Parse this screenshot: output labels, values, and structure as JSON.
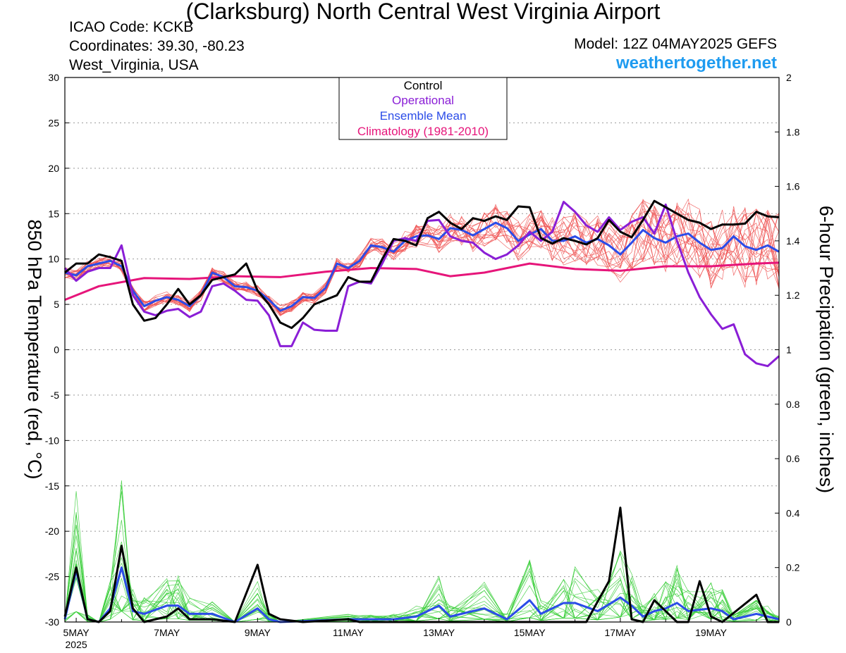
{
  "header": {
    "title": "(Clarksburg) North Central West Virginia Airport",
    "icao": "ICAO Code: KCKB",
    "coordinates": "Coordinates: 39.30, -80.23",
    "region": "West_Virginia, USA",
    "model": "Model: 12Z 04MAY2025 GEFS",
    "website": "weathertogether.net"
  },
  "colors": {
    "member_temp": "#ee4d4d",
    "member_precip": "#33cc33",
    "control": "#000000",
    "operational": "#8a1ed6",
    "ensemble_mean": "#2b4ce8",
    "climatology": "#e6157a",
    "website": "#1e9bf0"
  },
  "chart_data": {
    "type": "line",
    "ylabel_left": "850 hPa Temperature (red, °C)",
    "ylabel_right": "6-hour Precipation (green, inches)",
    "xticks": [
      "5MAY",
      "7MAY",
      "9MAY",
      "11MAY",
      "13MAY",
      "15MAY",
      "17MAY",
      "19MAY"
    ],
    "x_year_label": "2025",
    "ylim_left": [
      -30,
      30
    ],
    "yticks_left": [
      30,
      25,
      20,
      15,
      10,
      5,
      0,
      -5,
      -10,
      -15,
      -20,
      -25,
      -30
    ],
    "ylim_right": [
      0,
      2
    ],
    "yticks_right": [
      "2",
      "1.8",
      "1.6",
      "1.4",
      "1.2",
      "1",
      "0.8",
      "0.6",
      "0.4",
      "0.2",
      "0"
    ],
    "grid": true,
    "legend_position": "top-center",
    "legend": [
      "Control",
      "Operational",
      "Ensemble Mean",
      "Climatology (1981-2010)"
    ],
    "x_days_range": [
      4.75,
      20.5
    ],
    "temperature": {
      "control": [
        [
          4.75,
          8.5
        ],
        [
          5,
          9.5
        ],
        [
          5.25,
          9.5
        ],
        [
          5.5,
          10.5
        ],
        [
          5.75,
          10.2
        ],
        [
          6,
          9.8
        ],
        [
          6.25,
          5.0
        ],
        [
          6.5,
          3.2
        ],
        [
          6.75,
          3.5
        ],
        [
          7,
          5.0
        ],
        [
          7.25,
          6.7
        ],
        [
          7.5,
          5.0
        ],
        [
          7.75,
          6.0
        ],
        [
          8,
          7.7
        ],
        [
          8.25,
          8.0
        ],
        [
          8.5,
          8.3
        ],
        [
          8.75,
          9.5
        ],
        [
          9,
          6.5
        ],
        [
          9.25,
          5.0
        ],
        [
          9.5,
          3.0
        ],
        [
          9.75,
          2.4
        ],
        [
          10,
          3.5
        ],
        [
          10.25,
          5.0
        ],
        [
          10.5,
          5.5
        ],
        [
          10.75,
          6.0
        ],
        [
          11,
          8.0
        ],
        [
          11.25,
          7.5
        ],
        [
          11.5,
          7.5
        ],
        [
          11.75,
          10.0
        ],
        [
          12,
          12.2
        ],
        [
          12.25,
          12.0
        ],
        [
          12.5,
          11.5
        ],
        [
          12.75,
          14.5
        ],
        [
          13,
          15.2
        ],
        [
          13.25,
          14.0
        ],
        [
          13.5,
          13.3
        ],
        [
          13.75,
          14.5
        ],
        [
          14,
          14.2
        ],
        [
          14.25,
          14.7
        ],
        [
          14.5,
          14.3
        ],
        [
          14.75,
          15.8
        ],
        [
          15,
          15.7
        ],
        [
          15.25,
          12.3
        ],
        [
          15.5,
          11.7
        ],
        [
          15.75,
          12.3
        ],
        [
          16,
          12.0
        ],
        [
          16.25,
          11.6
        ],
        [
          16.5,
          12.3
        ],
        [
          16.75,
          14.3
        ],
        [
          17,
          13.0
        ],
        [
          17.25,
          12.4
        ],
        [
          17.5,
          14.3
        ],
        [
          17.75,
          16.4
        ],
        [
          18,
          15.7
        ],
        [
          18.25,
          15.0
        ],
        [
          18.5,
          14.3
        ],
        [
          18.75,
          14.0
        ],
        [
          19,
          13.3
        ],
        [
          19.25,
          13.8
        ],
        [
          19.5,
          13.8
        ],
        [
          19.75,
          13.9
        ],
        [
          20,
          15.2
        ],
        [
          20.25,
          14.7
        ],
        [
          20.5,
          14.6
        ]
      ],
      "operational": [
        [
          4.75,
          9.0
        ],
        [
          5,
          7.6
        ],
        [
          5.25,
          8.6
        ],
        [
          5.5,
          9.0
        ],
        [
          5.75,
          9.0
        ],
        [
          6,
          11.5
        ],
        [
          6.25,
          6.0
        ],
        [
          6.5,
          4.2
        ],
        [
          6.75,
          3.8
        ],
        [
          7,
          4.3
        ],
        [
          7.25,
          4.5
        ],
        [
          7.5,
          3.6
        ],
        [
          7.75,
          4.2
        ],
        [
          8,
          7.0
        ],
        [
          8.25,
          7.3
        ],
        [
          8.5,
          6.5
        ],
        [
          8.75,
          5.5
        ],
        [
          9,
          5.4
        ],
        [
          9.25,
          3.8
        ],
        [
          9.5,
          0.4
        ],
        [
          9.75,
          0.4
        ],
        [
          10,
          3.0
        ],
        [
          10.25,
          2.2
        ],
        [
          10.5,
          2.1
        ],
        [
          10.75,
          2.1
        ],
        [
          11,
          7.0
        ],
        [
          11.25,
          7.5
        ],
        [
          11.5,
          7.3
        ],
        [
          11.75,
          9.5
        ],
        [
          12,
          12.0
        ],
        [
          12.25,
          12.3
        ],
        [
          12.5,
          12.0
        ],
        [
          12.75,
          14.2
        ],
        [
          13,
          14.3
        ],
        [
          13.25,
          12.5
        ],
        [
          13.5,
          12.0
        ],
        [
          13.75,
          11.8
        ],
        [
          14,
          10.7
        ],
        [
          14.25,
          10.0
        ],
        [
          14.5,
          10.5
        ],
        [
          14.75,
          11.5
        ],
        [
          15,
          13.0
        ],
        [
          15.25,
          12.0
        ],
        [
          15.5,
          13.0
        ],
        [
          15.75,
          16.3
        ],
        [
          16,
          15.2
        ],
        [
          16.25,
          13.7
        ],
        [
          16.5,
          13.0
        ],
        [
          16.75,
          14.6
        ],
        [
          17,
          13.2
        ],
        [
          17.25,
          14.1
        ],
        [
          17.5,
          14.6
        ],
        [
          17.75,
          12.8
        ],
        [
          18,
          16.0
        ],
        [
          18.25,
          12.0
        ],
        [
          18.5,
          8.5
        ],
        [
          18.75,
          5.8
        ],
        [
          19,
          3.9
        ],
        [
          19.25,
          2.3
        ],
        [
          19.5,
          2.8
        ],
        [
          19.75,
          -0.5
        ],
        [
          20,
          -1.5
        ],
        [
          20.25,
          -1.8
        ],
        [
          20.5,
          -0.7
        ]
      ],
      "ensemble_mean": [
        [
          4.75,
          8.5
        ],
        [
          5,
          8.2
        ],
        [
          5.25,
          9.2
        ],
        [
          5.5,
          9.5
        ],
        [
          5.75,
          9.8
        ],
        [
          6,
          9.2
        ],
        [
          6.25,
          6.5
        ],
        [
          6.5,
          4.8
        ],
        [
          6.75,
          5.4
        ],
        [
          7,
          5.8
        ],
        [
          7.25,
          5.5
        ],
        [
          7.5,
          4.8
        ],
        [
          7.75,
          6.0
        ],
        [
          8,
          8.5
        ],
        [
          8.25,
          8.0
        ],
        [
          8.5,
          7.0
        ],
        [
          8.75,
          6.9
        ],
        [
          9,
          6.5
        ],
        [
          9.25,
          5.5
        ],
        [
          9.5,
          4.3
        ],
        [
          9.75,
          4.8
        ],
        [
          10,
          5.8
        ],
        [
          10.25,
          5.7
        ],
        [
          10.5,
          6.8
        ],
        [
          10.75,
          9.5
        ],
        [
          11,
          9.0
        ],
        [
          11.25,
          9.8
        ],
        [
          11.5,
          11.5
        ],
        [
          11.75,
          11.3
        ],
        [
          12,
          10.8
        ],
        [
          12.25,
          12.0
        ],
        [
          12.5,
          12.5
        ],
        [
          12.75,
          12.6
        ],
        [
          13,
          12.2
        ],
        [
          13.25,
          13.4
        ],
        [
          13.5,
          13.2
        ],
        [
          13.75,
          12.6
        ],
        [
          14,
          13.3
        ],
        [
          14.25,
          14.0
        ],
        [
          14.5,
          13.4
        ],
        [
          14.75,
          12.0
        ],
        [
          15,
          12.7
        ],
        [
          15.25,
          13.3
        ],
        [
          15.5,
          12.0
        ],
        [
          15.75,
          12.0
        ],
        [
          16,
          12.5
        ],
        [
          16.25,
          11.8
        ],
        [
          16.5,
          12.2
        ],
        [
          16.75,
          11.5
        ],
        [
          17,
          10.5
        ],
        [
          17.25,
          11.8
        ],
        [
          17.5,
          13.2
        ],
        [
          17.75,
          12.3
        ],
        [
          18,
          11.8
        ],
        [
          18.25,
          12.5
        ],
        [
          18.5,
          12.8
        ],
        [
          18.75,
          11.8
        ],
        [
          19,
          11.0
        ],
        [
          19.25,
          11.2
        ],
        [
          19.5,
          12.5
        ],
        [
          19.75,
          11.4
        ],
        [
          20,
          11.0
        ],
        [
          20.25,
          11.5
        ],
        [
          20.5,
          10.8
        ]
      ],
      "climatology": [
        [
          4.75,
          5.5
        ],
        [
          5.5,
          7.0
        ],
        [
          6.5,
          7.9
        ],
        [
          7.5,
          7.8
        ],
        [
          8.5,
          8.1
        ],
        [
          9.5,
          8.0
        ],
        [
          10.5,
          8.6
        ],
        [
          11.5,
          9.0
        ],
        [
          12.5,
          8.9
        ],
        [
          13.25,
          8.1
        ],
        [
          14,
          8.5
        ],
        [
          15,
          9.5
        ],
        [
          16,
          8.9
        ],
        [
          17,
          8.7
        ],
        [
          18,
          9.2
        ],
        [
          19,
          9.2
        ],
        [
          20,
          9.5
        ],
        [
          20.5,
          9.6
        ]
      ]
    },
    "precipitation": {
      "control": [
        [
          4.75,
          0.02
        ],
        [
          5,
          0.2
        ],
        [
          5.25,
          0.01
        ],
        [
          5.5,
          0.0
        ],
        [
          5.75,
          0.04
        ],
        [
          6,
          0.28
        ],
        [
          6.25,
          0.05
        ],
        [
          6.5,
          0.0
        ],
        [
          7,
          0.02
        ],
        [
          7.25,
          0.05
        ],
        [
          7.5,
          0.01
        ],
        [
          8,
          0.01
        ],
        [
          8.5,
          0.0
        ],
        [
          9,
          0.21
        ],
        [
          9.25,
          0.03
        ],
        [
          9.5,
          0.01
        ],
        [
          10,
          0.0
        ],
        [
          11,
          0.01
        ],
        [
          11.25,
          0.0
        ],
        [
          14,
          0.0
        ],
        [
          14.25,
          0.0
        ],
        [
          15,
          0.0
        ],
        [
          16.25,
          0.0
        ],
        [
          16.75,
          0.15
        ],
        [
          17,
          0.42
        ],
        [
          17.25,
          0.01
        ],
        [
          17.5,
          0.0
        ],
        [
          17.75,
          0.08
        ],
        [
          18,
          0.04
        ],
        [
          18.25,
          0.0
        ],
        [
          18.5,
          0.0
        ],
        [
          18.75,
          0.15
        ],
        [
          19,
          0.02
        ],
        [
          19.25,
          0.0
        ],
        [
          20,
          0.1
        ],
        [
          20.25,
          0.0
        ],
        [
          20.5,
          0.0
        ]
      ],
      "ensemble_mean": [
        [
          4.75,
          0.01
        ],
        [
          5,
          0.19
        ],
        [
          5.25,
          0.01
        ],
        [
          5.5,
          0.0
        ],
        [
          5.75,
          0.05
        ],
        [
          6,
          0.2
        ],
        [
          6.25,
          0.04
        ],
        [
          6.5,
          0.03
        ],
        [
          7,
          0.06
        ],
        [
          7.25,
          0.06
        ],
        [
          7.5,
          0.03
        ],
        [
          8,
          0.03
        ],
        [
          8.5,
          0.0
        ],
        [
          9,
          0.05
        ],
        [
          9.25,
          0.01
        ],
        [
          9.5,
          0.0
        ],
        [
          11,
          0.01
        ],
        [
          11.5,
          0.01
        ],
        [
          12,
          0.01
        ],
        [
          12.5,
          0.02
        ],
        [
          13,
          0.06
        ],
        [
          13.25,
          0.02
        ],
        [
          14,
          0.05
        ],
        [
          14.5,
          0.01
        ],
        [
          15,
          0.08
        ],
        [
          15.25,
          0.03
        ],
        [
          15.75,
          0.07
        ],
        [
          16,
          0.07
        ],
        [
          16.5,
          0.04
        ],
        [
          17,
          0.09
        ],
        [
          17.25,
          0.06
        ],
        [
          17.5,
          0.02
        ],
        [
          17.75,
          0.04
        ],
        [
          18,
          0.05
        ],
        [
          18.25,
          0.07
        ],
        [
          18.5,
          0.04
        ],
        [
          19,
          0.05
        ],
        [
          19.25,
          0.04
        ],
        [
          19.5,
          0.01
        ],
        [
          20,
          0.03
        ],
        [
          20.25,
          0.02
        ],
        [
          20.5,
          0.01
        ]
      ]
    }
  }
}
